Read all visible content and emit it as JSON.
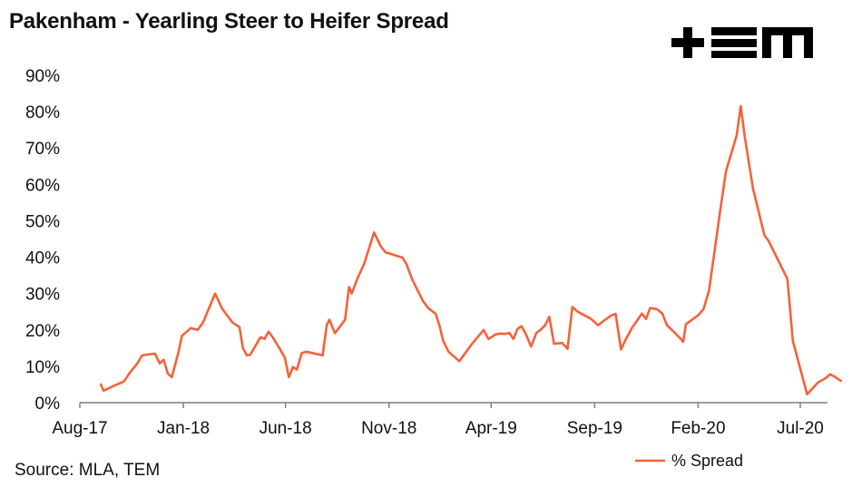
{
  "header": {
    "title": "Pakenham - Yearling Steer to Heifer Spread"
  },
  "logo": {
    "text": "+TEM",
    "icon": "tem-logo"
  },
  "footer": {
    "source": "Source: MLA, TEM"
  },
  "colors": {
    "series": "#f4623a",
    "axis": "#7f7f7f",
    "text": "#111111"
  },
  "chart_data": {
    "type": "line",
    "title": "Pakenham - Yearling Steer to Heifer Spread",
    "xlabel": "",
    "ylabel": "",
    "ylim": [
      0,
      90
    ],
    "xlim": [
      "2017-08",
      "2020-07"
    ],
    "yticks": [
      "0%",
      "10%",
      "20%",
      "30%",
      "40%",
      "50%",
      "60%",
      "70%",
      "80%",
      "90%"
    ],
    "xticks": [
      "Aug-17",
      "Jan-18",
      "Jun-18",
      "Nov-18",
      "Apr-19",
      "Sep-19",
      "Feb-20",
      "Jul-20"
    ],
    "grid": false,
    "legend_position": "bottom-right",
    "series": [
      {
        "name": "% Spread",
        "points": [
          [
            "2017-09-01",
            5
          ],
          [
            "2017-09-05",
            3.3
          ],
          [
            "2017-09-25",
            5
          ],
          [
            "2017-10-05",
            5.8
          ],
          [
            "2017-10-15",
            8.5
          ],
          [
            "2017-10-25",
            10.8
          ],
          [
            "2017-11-01",
            13
          ],
          [
            "2017-11-20",
            13.5
          ],
          [
            "2017-11-27",
            10.8
          ],
          [
            "2017-12-03",
            11.8
          ],
          [
            "2017-12-09",
            8
          ],
          [
            "2017-12-15",
            7
          ],
          [
            "2017-12-25",
            14
          ],
          [
            "2017-12-30",
            18.4
          ],
          [
            "2018-01-12",
            20.5
          ],
          [
            "2018-01-22",
            20
          ],
          [
            "2018-01-30",
            22
          ],
          [
            "2018-02-17",
            30
          ],
          [
            "2018-02-27",
            26
          ],
          [
            "2018-03-05",
            24.4
          ],
          [
            "2018-03-15",
            22
          ],
          [
            "2018-03-25",
            20.8
          ],
          [
            "2018-03-30",
            15
          ],
          [
            "2018-04-05",
            13
          ],
          [
            "2018-04-10",
            13.2
          ],
          [
            "2018-04-25",
            18
          ],
          [
            "2018-05-01",
            17.5
          ],
          [
            "2018-05-07",
            19.5
          ],
          [
            "2018-05-13",
            18
          ],
          [
            "2018-05-23",
            15
          ],
          [
            "2018-05-31",
            12.4
          ],
          [
            "2018-06-06",
            7
          ],
          [
            "2018-06-12",
            9.8
          ],
          [
            "2018-06-18",
            9.1
          ],
          [
            "2018-06-25",
            13.6
          ],
          [
            "2018-07-02",
            14
          ],
          [
            "2018-07-26",
            13
          ],
          [
            "2018-08-01",
            21.3
          ],
          [
            "2018-08-05",
            22.8
          ],
          [
            "2018-08-13",
            19.1
          ],
          [
            "2018-08-25",
            22
          ],
          [
            "2018-08-28",
            22.8
          ],
          [
            "2018-09-03",
            31.8
          ],
          [
            "2018-09-07",
            30
          ],
          [
            "2018-09-15",
            34
          ],
          [
            "2018-09-25",
            38
          ],
          [
            "2018-10-10",
            46.8
          ],
          [
            "2018-10-20",
            42.9
          ],
          [
            "2018-10-27",
            41.3
          ],
          [
            "2018-11-21",
            39.9
          ],
          [
            "2018-11-27",
            38
          ],
          [
            "2018-12-05",
            34
          ],
          [
            "2018-12-13",
            31
          ],
          [
            "2018-12-21",
            28
          ],
          [
            "2018-12-29",
            26
          ],
          [
            "2019-01-09",
            24.4
          ],
          [
            "2019-01-15",
            21
          ],
          [
            "2019-01-20",
            17
          ],
          [
            "2019-01-28",
            14
          ],
          [
            "2019-02-13",
            11.4
          ],
          [
            "2019-03-03",
            16
          ],
          [
            "2019-03-21",
            20
          ],
          [
            "2019-03-28",
            17.5
          ],
          [
            "2019-04-08",
            18.8
          ],
          [
            "2019-04-15",
            19
          ],
          [
            "2019-04-22",
            18.9
          ],
          [
            "2019-04-28",
            19.2
          ],
          [
            "2019-05-04",
            17.5
          ],
          [
            "2019-05-10",
            20.3
          ],
          [
            "2019-05-16",
            21
          ],
          [
            "2019-05-22",
            19
          ],
          [
            "2019-05-30",
            15.4
          ],
          [
            "2019-06-07",
            19.2
          ],
          [
            "2019-06-13",
            20
          ],
          [
            "2019-06-20",
            21.3
          ],
          [
            "2019-06-26",
            23.6
          ],
          [
            "2019-07-03",
            16.2
          ],
          [
            "2019-07-15",
            16.4
          ],
          [
            "2019-07-23",
            14.8
          ],
          [
            "2019-07-30",
            26.3
          ],
          [
            "2019-08-07",
            25
          ],
          [
            "2019-08-27",
            23
          ],
          [
            "2019-09-06",
            21.3
          ],
          [
            "2019-09-16",
            22.7
          ],
          [
            "2019-09-26",
            24
          ],
          [
            "2019-10-02",
            24.4
          ],
          [
            "2019-10-10",
            14.6
          ],
          [
            "2019-10-16",
            17
          ],
          [
            "2019-10-26",
            20.5
          ],
          [
            "2019-11-10",
            24.5
          ],
          [
            "2019-11-16",
            23
          ],
          [
            "2019-11-22",
            26
          ],
          [
            "2019-12-02",
            25.7
          ],
          [
            "2019-12-10",
            24.5
          ],
          [
            "2019-12-17",
            21.3
          ],
          [
            "2019-12-27",
            19.5
          ],
          [
            "2020-01-06",
            17.6
          ],
          [
            "2020-01-10",
            16.7
          ],
          [
            "2020-01-14",
            21.6
          ],
          [
            "2020-02-01",
            24
          ],
          [
            "2020-02-09",
            25.7
          ],
          [
            "2020-02-17",
            30.8
          ],
          [
            "2020-02-24",
            40
          ],
          [
            "2020-03-04",
            52
          ],
          [
            "2020-03-13",
            63.5
          ],
          [
            "2020-03-29",
            73.5
          ],
          [
            "2020-04-04",
            81.5
          ],
          [
            "2020-04-10",
            73
          ],
          [
            "2020-04-22",
            59
          ],
          [
            "2020-05-09",
            46
          ],
          [
            "2020-05-15",
            44.5
          ],
          [
            "2020-06-12",
            34
          ],
          [
            "2020-06-20",
            17
          ],
          [
            "2020-07-11",
            2.3
          ],
          [
            "2020-07-27",
            5.5
          ],
          [
            "2020-08-08",
            6.8
          ],
          [
            "2020-08-14",
            7.8
          ],
          [
            "2020-08-22",
            7
          ],
          [
            "2020-08-30",
            6
          ]
        ]
      }
    ]
  }
}
